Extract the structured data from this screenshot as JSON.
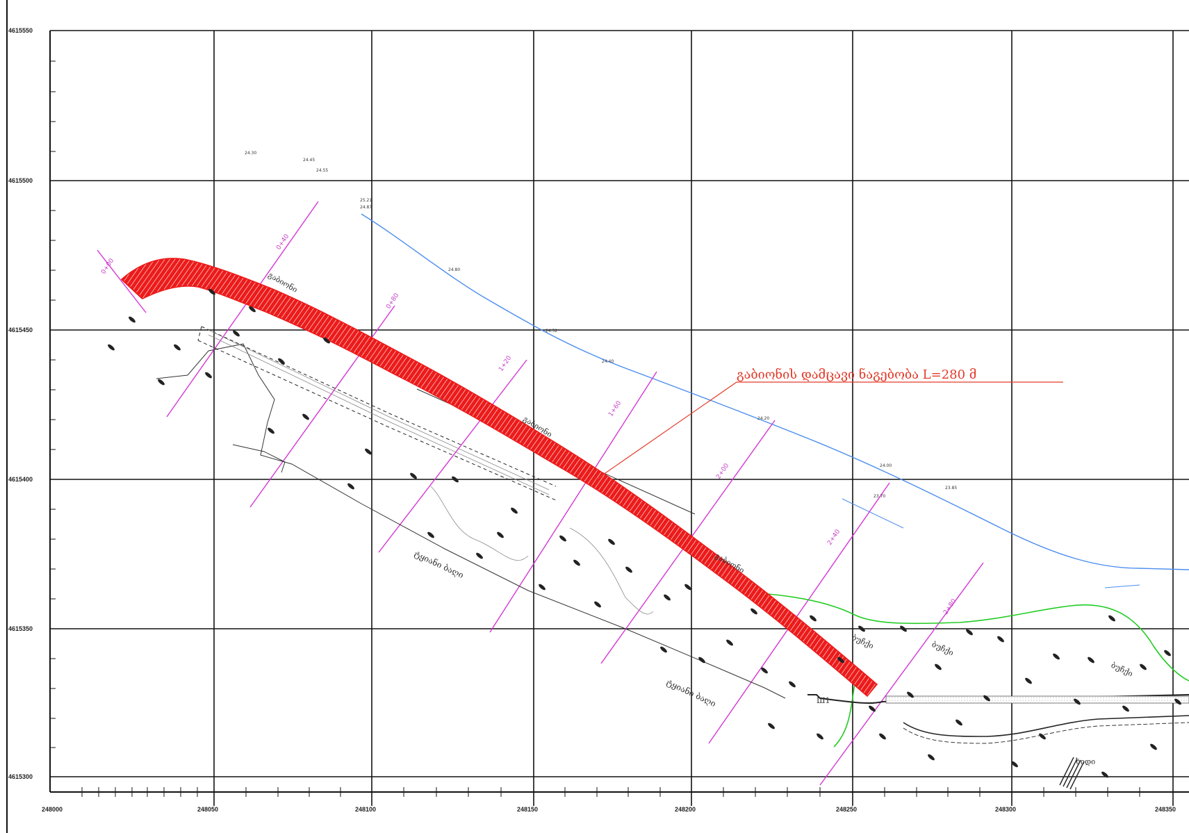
{
  "grid": {
    "x_labels": [
      "248000",
      "248050",
      "248100",
      "248150",
      "248200",
      "248250",
      "248300",
      "248350"
    ],
    "y_labels": [
      "4615550",
      "4615500",
      "4615450",
      "4615400",
      "4615350",
      "4615300"
    ]
  },
  "callout": {
    "text": "გაბიონის დამცავი ნაგებობა L=280 მ"
  },
  "labels": {
    "dam_1": "გაბიონი",
    "dam_2": "გაბიონი",
    "dam_3": "გაბიონი",
    "road_1": "ტყიანი ბაღი",
    "road_2": "ტყიანი ბაღი",
    "shrub_1": "ბუჩქი",
    "shrub_2": "ბუჩქი",
    "shrub_3": "ბუჩქი",
    "bridge": "ხიდი",
    "marker": "Ш1"
  },
  "stations": [
    "0+00",
    "0+40",
    "0+80",
    "1+20",
    "1+60",
    "2+00",
    "2+40",
    "2+80"
  ],
  "elevations": [
    "24.30",
    "24.45",
    "24.55",
    "25.21",
    "24.87",
    "24.80",
    "24.52",
    "24.40",
    "24.20",
    "24.00",
    "23.85",
    "23.70"
  ],
  "colors": {
    "gabion": "#ec1b1b",
    "river": "#4a8df0",
    "sections": "#d436d4",
    "vegetation": "#22cc22",
    "grid": "#111111",
    "callout": "#e23b2a"
  }
}
